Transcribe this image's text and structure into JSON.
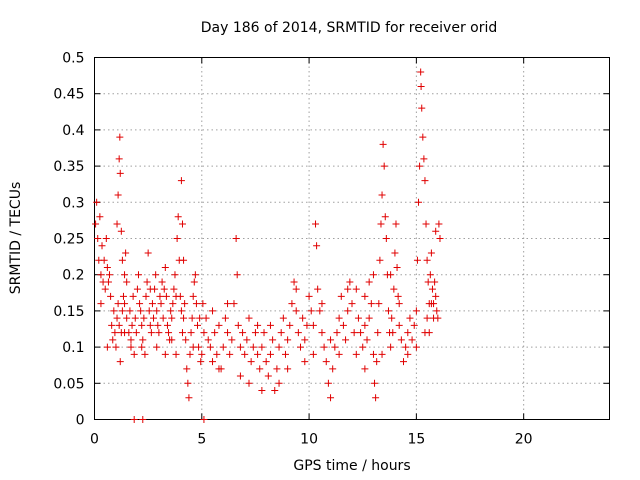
{
  "chart_data": {
    "type": "scatter",
    "title": "Day 186 of 2014, SRMTID for receiver orid",
    "xlabel": "GPS time / hours",
    "ylabel": "SRMTID / TECUs",
    "xlim": [
      0,
      24
    ],
    "ylim": [
      0,
      0.5
    ],
    "x_ticks": [
      0,
      5,
      10,
      15,
      20
    ],
    "y_ticks": [
      0,
      0.05,
      0.1,
      0.15,
      0.2,
      0.25,
      0.3,
      0.35,
      0.4,
      0.45,
      0.5
    ],
    "x_tick_labels": [
      "0",
      "5",
      "10",
      "15",
      "20"
    ],
    "y_tick_labels": [
      "0",
      "0.05",
      "0.1",
      "0.15",
      "0.2",
      "0.25",
      "0.3",
      "0.35",
      "0.4",
      "0.45",
      "0.5"
    ],
    "grid": true,
    "marker": "plus",
    "color": "#e00000",
    "series": [
      {
        "points": [
          [
            0.05,
            0.27
          ],
          [
            0.1,
            0.3
          ],
          [
            0.15,
            0.25
          ],
          [
            0.2,
            0.22
          ],
          [
            0.25,
            0.28
          ],
          [
            0.3,
            0.2
          ],
          [
            0.35,
            0.24
          ],
          [
            0.4,
            0.19
          ],
          [
            0.45,
            0.22
          ],
          [
            0.5,
            0.18
          ],
          [
            0.55,
            0.25
          ],
          [
            0.6,
            0.21
          ],
          [
            0.65,
            0.19
          ],
          [
            0.7,
            0.2
          ],
          [
            0.75,
            0.17
          ],
          [
            0.8,
            0.13
          ],
          [
            0.85,
            0.11
          ],
          [
            0.9,
            0.15
          ],
          [
            0.95,
            0.12
          ],
          [
            1.0,
            0.1
          ],
          [
            1.05,
            0.14
          ],
          [
            1.1,
            0.16
          ],
          [
            1.15,
            0.13
          ],
          [
            1.2,
            0.08
          ],
          [
            1.25,
            0.12
          ],
          [
            1.3,
            0.15
          ],
          [
            1.35,
            0.17
          ],
          [
            1.4,
            0.2
          ],
          [
            1.45,
            0.23
          ],
          [
            1.5,
            0.19
          ],
          [
            1.05,
            0.27
          ],
          [
            1.1,
            0.31
          ],
          [
            1.15,
            0.36
          ],
          [
            1.18,
            0.39
          ],
          [
            1.2,
            0.34
          ],
          [
            1.25,
            0.26
          ],
          [
            1.3,
            0.22
          ],
          [
            1.4,
            0.16
          ],
          [
            1.5,
            0.14
          ],
          [
            1.6,
            0.12
          ],
          [
            1.65,
            0.15
          ],
          [
            1.7,
            0.11
          ],
          [
            1.75,
            0.13
          ],
          [
            1.8,
            0.17
          ],
          [
            1.85,
            0.09
          ],
          [
            1.9,
            0.14
          ],
          [
            1.95,
            0.12
          ],
          [
            2.0,
            0.18
          ],
          [
            2.05,
            0.2
          ],
          [
            2.1,
            0.16
          ],
          [
            2.15,
            0.15
          ],
          [
            2.2,
            0.13
          ],
          [
            2.25,
            0.11
          ],
          [
            2.3,
            0.14
          ],
          [
            2.35,
            0.09
          ],
          [
            2.4,
            0.17
          ],
          [
            2.45,
            0.19
          ],
          [
            2.5,
            0.23
          ],
          [
            2.55,
            0.15
          ],
          [
            2.6,
            0.13
          ],
          [
            2.65,
            0.12
          ],
          [
            2.7,
            0.16
          ],
          [
            2.75,
            0.14
          ],
          [
            2.8,
            0.18
          ],
          [
            2.85,
            0.2
          ],
          [
            2.9,
            0.15
          ],
          [
            2.95,
            0.13
          ],
          [
            3.0,
            0.12
          ],
          [
            3.05,
            0.17
          ],
          [
            3.1,
            0.16
          ],
          [
            3.15,
            0.19
          ],
          [
            3.2,
            0.14
          ],
          [
            3.25,
            0.18
          ],
          [
            3.3,
            0.21
          ],
          [
            3.35,
            0.17
          ],
          [
            3.4,
            0.13
          ],
          [
            3.45,
            0.12
          ],
          [
            3.5,
            0.11
          ],
          [
            3.55,
            0.15
          ],
          [
            3.6,
            0.14
          ],
          [
            3.65,
            0.16
          ],
          [
            3.7,
            0.18
          ],
          [
            3.75,
            0.2
          ],
          [
            3.8,
            0.17
          ],
          [
            3.85,
            0.25
          ],
          [
            3.9,
            0.28
          ],
          [
            3.95,
            0.22
          ],
          [
            4.0,
            0.17
          ],
          [
            4.05,
            0.15
          ],
          [
            4.1,
            0.12
          ],
          [
            4.15,
            0.14
          ],
          [
            4.2,
            0.16
          ],
          [
            4.25,
            0.11
          ],
          [
            4.3,
            0.07
          ],
          [
            4.35,
            0.05
          ],
          [
            4.4,
            0.03
          ],
          [
            4.45,
            0.09
          ],
          [
            4.5,
            0.12
          ],
          [
            4.55,
            0.14
          ],
          [
            4.6,
            0.17
          ],
          [
            4.65,
            0.19
          ],
          [
            4.7,
            0.2
          ],
          [
            4.75,
            0.16
          ],
          [
            4.8,
            0.13
          ],
          [
            4.85,
            0.1
          ],
          [
            4.9,
            0.14
          ],
          [
            4.95,
            0.08
          ],
          [
            5.0,
            0.09
          ],
          [
            5.1,
            0.12
          ],
          [
            5.2,
            0.14
          ],
          [
            4.05,
            0.33
          ],
          [
            4.1,
            0.27
          ],
          [
            4.15,
            0.22
          ],
          [
            5.3,
            0.11
          ],
          [
            5.4,
            0.1
          ],
          [
            5.5,
            0.08
          ],
          [
            5.6,
            0.12
          ],
          [
            5.7,
            0.09
          ],
          [
            5.8,
            0.13
          ],
          [
            5.9,
            0.07
          ],
          [
            6.0,
            0.1
          ],
          [
            6.1,
            0.14
          ],
          [
            6.2,
            0.12
          ],
          [
            6.3,
            0.09
          ],
          [
            6.4,
            0.11
          ],
          [
            6.5,
            0.16
          ],
          [
            6.6,
            0.25
          ],
          [
            6.65,
            0.2
          ],
          [
            6.7,
            0.13
          ],
          [
            6.8,
            0.1
          ],
          [
            6.9,
            0.12
          ],
          [
            7.0,
            0.09
          ],
          [
            7.1,
            0.11
          ],
          [
            7.2,
            0.14
          ],
          [
            7.3,
            0.08
          ],
          [
            7.4,
            0.1
          ],
          [
            7.5,
            0.12
          ],
          [
            7.6,
            0.09
          ],
          [
            7.7,
            0.07
          ],
          [
            7.8,
            0.1
          ],
          [
            7.9,
            0.12
          ],
          [
            8.0,
            0.08
          ],
          [
            8.1,
            0.06
          ],
          [
            8.2,
            0.09
          ],
          [
            8.3,
            0.11
          ],
          [
            8.4,
            0.04
          ],
          [
            8.5,
            0.07
          ],
          [
            8.6,
            0.1
          ],
          [
            8.7,
            0.12
          ],
          [
            8.8,
            0.14
          ],
          [
            8.9,
            0.09
          ],
          [
            9.0,
            0.11
          ],
          [
            9.1,
            0.13
          ],
          [
            9.2,
            0.16
          ],
          [
            9.3,
            0.19
          ],
          [
            9.4,
            0.15
          ],
          [
            9.5,
            0.12
          ],
          [
            9.6,
            0.1
          ],
          [
            9.7,
            0.14
          ],
          [
            9.8,
            0.08
          ],
          [
            9.9,
            0.13
          ],
          [
            10.0,
            0.17
          ],
          [
            10.1,
            0.15
          ],
          [
            10.2,
            0.13
          ],
          [
            10.3,
            0.27
          ],
          [
            10.35,
            0.24
          ],
          [
            10.4,
            0.18
          ],
          [
            10.5,
            0.15
          ],
          [
            10.6,
            0.12
          ],
          [
            10.7,
            0.1
          ],
          [
            10.8,
            0.08
          ],
          [
            10.9,
            0.05
          ],
          [
            11.0,
            0.03
          ],
          [
            11.1,
            0.07
          ],
          [
            11.2,
            0.1
          ],
          [
            11.3,
            0.12
          ],
          [
            11.4,
            0.14
          ],
          [
            11.5,
            0.17
          ],
          [
            11.6,
            0.13
          ],
          [
            11.7,
            0.11
          ],
          [
            11.8,
            0.15
          ],
          [
            11.9,
            0.19
          ],
          [
            12.0,
            0.16
          ],
          [
            12.1,
            0.12
          ],
          [
            12.2,
            0.18
          ],
          [
            12.3,
            0.14
          ],
          [
            12.4,
            0.12
          ],
          [
            12.5,
            0.1
          ],
          [
            12.6,
            0.13
          ],
          [
            12.7,
            0.11
          ],
          [
            12.8,
            0.14
          ],
          [
            12.9,
            0.16
          ],
          [
            13.0,
            0.2
          ],
          [
            13.05,
            0.05
          ],
          [
            13.1,
            0.03
          ],
          [
            13.15,
            0.08
          ],
          [
            13.2,
            0.12
          ],
          [
            13.25,
            0.16
          ],
          [
            13.3,
            0.22
          ],
          [
            13.35,
            0.27
          ],
          [
            13.4,
            0.31
          ],
          [
            13.45,
            0.38
          ],
          [
            13.5,
            0.35
          ],
          [
            13.55,
            0.28
          ],
          [
            13.6,
            0.25
          ],
          [
            13.65,
            0.2
          ],
          [
            13.7,
            0.15
          ],
          [
            13.75,
            0.12
          ],
          [
            13.8,
            0.1
          ],
          [
            13.85,
            0.14
          ],
          [
            13.9,
            0.12
          ],
          [
            13.95,
            0.18
          ],
          [
            14.0,
            0.23
          ],
          [
            14.05,
            0.27
          ],
          [
            14.1,
            0.21
          ],
          [
            14.15,
            0.17
          ],
          [
            14.2,
            0.13
          ],
          [
            14.3,
            0.11
          ],
          [
            14.4,
            0.08
          ],
          [
            14.5,
            0.1
          ],
          [
            14.6,
            0.12
          ],
          [
            14.7,
            0.14
          ],
          [
            14.8,
            0.11
          ],
          [
            14.9,
            0.13
          ],
          [
            15.0,
            0.15
          ],
          [
            15.05,
            0.22
          ],
          [
            15.1,
            0.3
          ],
          [
            15.15,
            0.35
          ],
          [
            15.2,
            0.48
          ],
          [
            15.22,
            0.46
          ],
          [
            15.25,
            0.43
          ],
          [
            15.3,
            0.39
          ],
          [
            15.35,
            0.36
          ],
          [
            15.4,
            0.33
          ],
          [
            15.45,
            0.27
          ],
          [
            15.5,
            0.22
          ],
          [
            15.55,
            0.19
          ],
          [
            15.6,
            0.16
          ],
          [
            15.65,
            0.2
          ],
          [
            15.7,
            0.23
          ],
          [
            15.75,
            0.18
          ],
          [
            15.8,
            0.16
          ],
          [
            15.85,
            0.19
          ],
          [
            15.9,
            0.26
          ],
          [
            15.95,
            0.15
          ],
          [
            16.0,
            0.14
          ],
          [
            16.05,
            0.27
          ],
          [
            16.1,
            0.25
          ],
          [
            15.5,
            0.14
          ],
          [
            15.6,
            0.12
          ],
          [
            15.7,
            0.16
          ],
          [
            15.8,
            0.14
          ],
          [
            15.9,
            0.17
          ],
          [
            0.3,
            0.16
          ],
          [
            0.6,
            0.1
          ],
          [
            1.4,
            0.12
          ],
          [
            1.7,
            0.1
          ],
          [
            2.2,
            0.1
          ],
          [
            2.6,
            0.18
          ],
          [
            2.9,
            0.1
          ],
          [
            3.3,
            0.09
          ],
          [
            3.6,
            0.11
          ],
          [
            3.8,
            0.09
          ],
          [
            4.6,
            0.1
          ],
          [
            5.05,
            0.16
          ],
          [
            5.5,
            0.15
          ],
          [
            5.8,
            0.07
          ],
          [
            6.2,
            0.16
          ],
          [
            6.8,
            0.06
          ],
          [
            7.2,
            0.05
          ],
          [
            7.6,
            0.13
          ],
          [
            8.2,
            0.13
          ],
          [
            8.6,
            0.05
          ],
          [
            9.0,
            0.07
          ],
          [
            9.4,
            0.18
          ],
          [
            9.8,
            0.11
          ],
          [
            10.2,
            0.09
          ],
          [
            10.6,
            0.16
          ],
          [
            11.0,
            0.11
          ],
          [
            11.4,
            0.09
          ],
          [
            11.8,
            0.18
          ],
          [
            12.2,
            0.09
          ],
          [
            12.6,
            0.17
          ],
          [
            13.0,
            0.09
          ],
          [
            13.4,
            0.09
          ],
          [
            13.8,
            0.2
          ],
          [
            14.2,
            0.16
          ],
          [
            14.6,
            0.09
          ],
          [
            15.0,
            0.1
          ],
          [
            15.4,
            0.12
          ],
          [
            12.6,
            0.07
          ],
          [
            12.8,
            0.19
          ],
          [
            7.8,
            0.04
          ]
        ]
      },
      {
        "points": [
          [
            1.85,
            0.0
          ],
          [
            2.25,
            0.0
          ],
          [
            5.1,
            0.0
          ]
        ]
      }
    ]
  }
}
